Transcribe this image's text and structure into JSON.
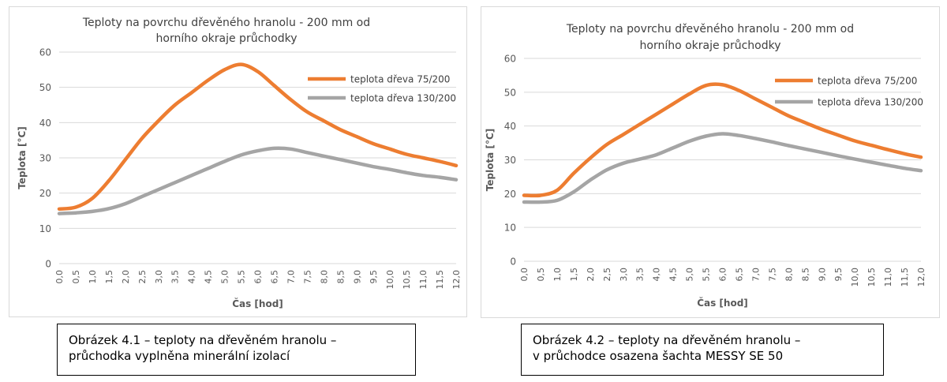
{
  "chart_data": [
    {
      "type": "line",
      "title": [
        "Teploty na povrchu dřevěného hranolu - 200 mm od",
        "horního okraje průchodky"
      ],
      "xlabel": "Čas [hod]",
      "ylabel": "Teplota [°C]",
      "ylim": [
        0,
        60
      ],
      "yticks": [
        "0",
        "10",
        "20",
        "30",
        "40",
        "50",
        "60"
      ],
      "x": [
        "0,0",
        "0,5",
        "1,0",
        "1,5",
        "2,0",
        "2,5",
        "3,0",
        "3,5",
        "4,0",
        "4,5",
        "5,0",
        "5,5",
        "6,0",
        "6,5",
        "7,0",
        "7,5",
        "8,0",
        "8,5",
        "9,0",
        "9,5",
        "10,0",
        "10,5",
        "11,0",
        "11,5",
        "12,0"
      ],
      "grid": "horizontal",
      "legend": "top-right",
      "series": [
        {
          "name": "teplota dřeva 75/200",
          "color": "#ed7d31",
          "values": [
            15.5,
            16,
            18.5,
            23.5,
            29.5,
            35.5,
            40.5,
            45,
            48.5,
            52,
            55,
            56.5,
            54.5,
            50.5,
            46.5,
            43,
            40.5,
            38,
            36,
            34,
            32.5,
            31,
            30,
            29,
            27.8
          ]
        },
        {
          "name": "teplota dřeva 130/200",
          "color": "#a5a5a5",
          "values": [
            14.2,
            14.4,
            14.8,
            15.6,
            17,
            19,
            21,
            23,
            25,
            27,
            29,
            30.8,
            32,
            32.7,
            32.5,
            31.5,
            30.5,
            29.5,
            28.5,
            27.5,
            26.7,
            25.8,
            25,
            24.5,
            23.8
          ]
        }
      ]
    },
    {
      "type": "line",
      "title": [
        "Teploty na povrchu dřevěného hranolu - 200 mm od",
        "horního okraje průchodky"
      ],
      "xlabel": "Čas [hod]",
      "ylabel": "Teplota [°C]",
      "ylim": [
        0,
        60
      ],
      "yticks": [
        "0",
        "10",
        "20",
        "30",
        "40",
        "50",
        "60"
      ],
      "x": [
        "0,0",
        "0,5",
        "1,0",
        "1,5",
        "2,0",
        "2,5",
        "3,0",
        "3,5",
        "4,0",
        "4,5",
        "5,0",
        "5,5",
        "6,0",
        "6,5",
        "7,0",
        "7,5",
        "8,0",
        "8,5",
        "9,0",
        "9,5",
        "10,0",
        "10,5",
        "11,0",
        "11,5",
        "12,0"
      ],
      "grid": "horizontal",
      "legend": "top-right",
      "series": [
        {
          "name": "teplota dřeva 75/200",
          "color": "#ed7d31",
          "values": [
            19.5,
            19.5,
            21,
            26,
            30.5,
            34.5,
            37.5,
            40.5,
            43.5,
            46.5,
            49.5,
            52,
            52.2,
            50.5,
            48,
            45.5,
            43,
            41,
            39,
            37.3,
            35.6,
            34.3,
            33,
            31.8,
            30.8
          ]
        },
        {
          "name": "teplota dřeva 130/200",
          "color": "#a5a5a5",
          "values": [
            17.5,
            17.5,
            18,
            20.5,
            24,
            27,
            29,
            30.2,
            31.5,
            33.5,
            35.5,
            37,
            37.7,
            37.2,
            36.3,
            35.3,
            34.2,
            33.2,
            32.2,
            31.2,
            30.2,
            29.3,
            28.4,
            27.5,
            26.8
          ]
        }
      ]
    }
  ],
  "captions": [
    {
      "line1": "Obrázek 4.1 – teploty na dřevěném hranolu –",
      "line2": "průchodka vyplněna minerální izolací"
    },
    {
      "line1": "Obrázek 4.2 – teploty na dřevěném hranolu –",
      "line2": "v průchodce osazena šachta MESSY SE 50"
    }
  ]
}
